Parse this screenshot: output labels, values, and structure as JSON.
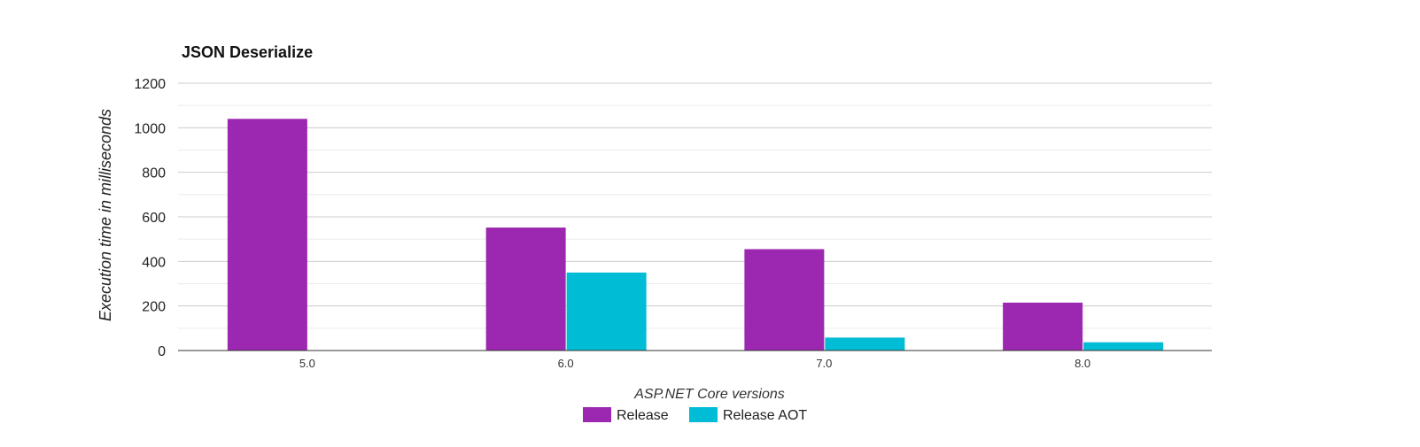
{
  "chart_data": {
    "type": "bar",
    "title": "JSON Deserialize",
    "xlabel": "ASP.NET Core versions",
    "ylabel": "Execution time in milliseconds",
    "categories": [
      "5.0",
      "6.0",
      "7.0",
      "8.0"
    ],
    "series": [
      {
        "name": "Release",
        "color": "#9c27b0",
        "values": [
          1040,
          552,
          455,
          215
        ]
      },
      {
        "name": "Release AOT",
        "color": "#00bcd4",
        "values": [
          0,
          350,
          58,
          37
        ]
      }
    ],
    "ylim": [
      0,
      1200
    ],
    "yticks": [
      "0",
      "200",
      "400",
      "600",
      "800",
      "1000",
      "1200"
    ],
    "grid": true,
    "legend": "bottom"
  }
}
